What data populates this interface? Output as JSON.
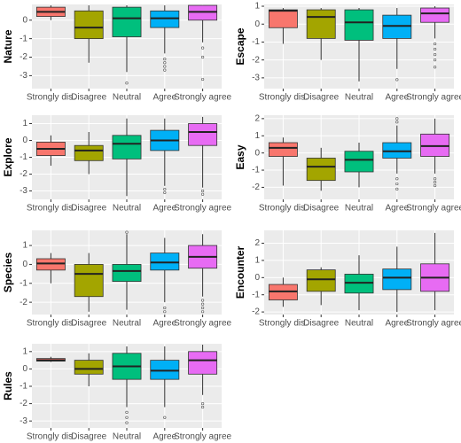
{
  "chart_data": [
    {
      "type": "box",
      "ylabel": "Nature",
      "categories": [
        "Strongly dis.",
        "Disagree",
        "Neutral",
        "Agree",
        "Strongly agree"
      ],
      "colors": [
        "#F8766D",
        "#A3A500",
        "#00BF7D",
        "#00B0F6",
        "#E76BF3"
      ],
      "grid": true,
      "ylim": [
        -3.7,
        0.85
      ],
      "yticks": [
        -3,
        -2,
        -1,
        0
      ],
      "boxes": [
        {
          "low": 0,
          "q1": 0.2,
          "median": 0.45,
          "q3": 0.7,
          "high": 0.8,
          "outliers": []
        },
        {
          "low": -2.3,
          "q1": -1.0,
          "median": -0.4,
          "q3": 0.5,
          "high": 0.8,
          "outliers": []
        },
        {
          "low": -2.8,
          "q1": -0.9,
          "median": 0.1,
          "q3": 0.7,
          "high": 0.8,
          "outliers": [
            -3.4
          ]
        },
        {
          "low": -1.8,
          "q1": -0.4,
          "median": 0.1,
          "q3": 0.5,
          "high": 0.8,
          "outliers": [
            -2.1,
            -2.3,
            -2.5,
            -2.7
          ]
        },
        {
          "low": -1.2,
          "q1": 0,
          "median": 0.45,
          "q3": 0.8,
          "high": 0.8,
          "outliers": [
            -1.5,
            -2.0,
            -3.2
          ]
        }
      ]
    },
    {
      "type": "box",
      "ylabel": "Escape",
      "categories": [
        "Strongly dis.",
        "Disagree",
        "Neutral",
        "Agree",
        "Strongly agree"
      ],
      "colors": [
        "#F8766D",
        "#A3A500",
        "#00BF7D",
        "#00B0F6",
        "#E76BF3"
      ],
      "grid": true,
      "ylim": [
        -3.6,
        1.1
      ],
      "yticks": [
        -3,
        -2,
        -1,
        0,
        1
      ],
      "boxes": [
        {
          "low": -1.1,
          "q1": -0.2,
          "median": 0.75,
          "q3": 0.8,
          "high": 0.9,
          "outliers": []
        },
        {
          "low": -2.0,
          "q1": -0.8,
          "median": 0.4,
          "q3": 0.8,
          "high": 0.9,
          "outliers": []
        },
        {
          "low": -3.2,
          "q1": -0.9,
          "median": 0.1,
          "q3": 0.8,
          "high": 0.9,
          "outliers": []
        },
        {
          "low": -2.5,
          "q1": -0.8,
          "median": -0.1,
          "q3": 0.5,
          "high": 0.9,
          "outliers": [
            -3.1
          ]
        },
        {
          "low": -0.8,
          "q1": 0.1,
          "median": 0.6,
          "q3": 0.9,
          "high": 1.0,
          "outliers": [
            -1.1,
            -1.4,
            -1.7,
            -2.0,
            -2.4
          ]
        }
      ]
    },
    {
      "type": "box",
      "ylabel": "Explore",
      "categories": [
        "Strongly dis.",
        "Disagree",
        "Neutral",
        "Agree",
        "Strongly agree"
      ],
      "colors": [
        "#F8766D",
        "#A3A500",
        "#00BF7D",
        "#00B0F6",
        "#E76BF3"
      ],
      "grid": true,
      "ylim": [
        -3.5,
        1.5
      ],
      "yticks": [
        -3,
        -2,
        -1,
        0,
        1
      ],
      "boxes": [
        {
          "low": -1.5,
          "q1": -0.9,
          "median": -0.5,
          "q3": -0.1,
          "high": 0.3,
          "outliers": []
        },
        {
          "low": -2.0,
          "q1": -1.2,
          "median": -0.6,
          "q3": -0.3,
          "high": 0.5,
          "outliers": []
        },
        {
          "low": -3.3,
          "q1": -1.1,
          "median": -0.2,
          "q3": 0.3,
          "high": 1.3,
          "outliers": []
        },
        {
          "low": -2.7,
          "q1": -0.6,
          "median": 0,
          "q3": 0.6,
          "high": 1.3,
          "outliers": [
            -2.9,
            -3.1
          ]
        },
        {
          "low": -2.8,
          "q1": -0.3,
          "median": 0.5,
          "q3": 1.0,
          "high": 1.4,
          "outliers": [
            -3.0,
            -3.2
          ]
        }
      ]
    },
    {
      "type": "box",
      "ylabel": "Easy",
      "categories": [
        "Strongly dis.",
        "Disagree",
        "Neutral",
        "Agree",
        "Strongly agree"
      ],
      "colors": [
        "#F8766D",
        "#A3A500",
        "#00BF7D",
        "#00B0F6",
        "#E76BF3"
      ],
      "grid": true,
      "ylim": [
        -2.7,
        2.2
      ],
      "yticks": [
        -2,
        -1,
        0,
        1,
        2
      ],
      "boxes": [
        {
          "low": -1.9,
          "q1": -0.2,
          "median": 0.3,
          "q3": 0.6,
          "high": 0.9,
          "outliers": []
        },
        {
          "low": -2.2,
          "q1": -1.6,
          "median": -0.8,
          "q3": -0.3,
          "high": 0.3,
          "outliers": []
        },
        {
          "low": -2.0,
          "q1": -1.1,
          "median": -0.4,
          "q3": 0.1,
          "high": 0.6,
          "outliers": []
        },
        {
          "low": -1.2,
          "q1": -0.3,
          "median": 0.1,
          "q3": 0.6,
          "high": 1.6,
          "outliers": [
            -1.5,
            -1.8,
            -2.1,
            1.8,
            2.0
          ]
        },
        {
          "low": -1.2,
          "q1": -0.2,
          "median": 0.4,
          "q3": 1.1,
          "high": 2.0,
          "outliers": [
            -1.5,
            -1.7,
            -1.9
          ]
        }
      ]
    },
    {
      "type": "box",
      "ylabel": "Species",
      "categories": [
        "Strongly dis.",
        "Disagree",
        "Neutral",
        "Agree",
        "Strongly agree"
      ],
      "colors": [
        "#F8766D",
        "#A3A500",
        "#00BF7D",
        "#00B0F6",
        "#E76BF3"
      ],
      "grid": true,
      "ylim": [
        -2.65,
        1.8
      ],
      "yticks": [
        -2,
        -1,
        0,
        1
      ],
      "boxes": [
        {
          "low": -1.0,
          "q1": -0.3,
          "median": 0.05,
          "q3": 0.3,
          "high": 0.6,
          "outliers": []
        },
        {
          "low": -2.5,
          "q1": -1.7,
          "median": -0.5,
          "q3": 0,
          "high": 0.6,
          "outliers": []
        },
        {
          "low": -2.4,
          "q1": -0.9,
          "median": -0.35,
          "q3": 0,
          "high": 1.6,
          "outliers": [
            1.7
          ]
        },
        {
          "low": -2.0,
          "q1": -0.3,
          "median": 0.1,
          "q3": 0.6,
          "high": 1.4,
          "outliers": [
            -2.3,
            -2.5
          ]
        },
        {
          "low": -1.7,
          "q1": -0.2,
          "median": 0.4,
          "q3": 1.0,
          "high": 1.6,
          "outliers": [
            -1.9,
            -2.1,
            -2.3,
            -2.5
          ]
        }
      ]
    },
    {
      "type": "box",
      "ylabel": "Encounter",
      "categories": [
        "Strongly dis.",
        "Disagree",
        "Neutral",
        "Agree",
        "Strongly agree"
      ],
      "colors": [
        "#F8766D",
        "#A3A500",
        "#00BF7D",
        "#00B0F6",
        "#E76BF3"
      ],
      "grid": true,
      "ylim": [
        -2.15,
        2.75
      ],
      "yticks": [
        -2,
        -1,
        0,
        1,
        2
      ],
      "boxes": [
        {
          "low": -1.7,
          "q1": -1.3,
          "median": -0.8,
          "q3": -0.4,
          "high": 0,
          "outliers": []
        },
        {
          "low": -1.6,
          "q1": -0.8,
          "median": -0.1,
          "q3": 0.45,
          "high": 0.6,
          "outliers": []
        },
        {
          "low": -1.9,
          "q1": -0.9,
          "median": -0.3,
          "q3": 0.2,
          "high": 1.3,
          "outliers": []
        },
        {
          "low": -2.0,
          "q1": -0.7,
          "median": 0,
          "q3": 0.5,
          "high": 1.8,
          "outliers": []
        },
        {
          "low": -1.9,
          "q1": -0.8,
          "median": 0,
          "q3": 0.8,
          "high": 2.6,
          "outliers": []
        }
      ]
    },
    {
      "type": "box",
      "ylabel": "Rules",
      "categories": [
        "Strongly dis.",
        "Disagree",
        "Neutral",
        "Agree",
        "Strongly agree"
      ],
      "colors": [
        "#F8766D",
        "#A3A500",
        "#00BF7D",
        "#00B0F6",
        "#E76BF3"
      ],
      "grid": true,
      "ylim": [
        -3.4,
        1.45
      ],
      "yticks": [
        -3,
        -2,
        -1,
        0,
        1
      ],
      "boxes": [
        {
          "low": 0.4,
          "q1": 0.45,
          "median": 0.5,
          "q3": 0.6,
          "high": 0.7,
          "outliers": []
        },
        {
          "low": -1.0,
          "q1": -0.3,
          "median": 0,
          "q3": 0.5,
          "high": 0.9,
          "outliers": []
        },
        {
          "low": -2.2,
          "q1": -0.6,
          "median": 0.15,
          "q3": 0.9,
          "high": 1.3,
          "outliers": [
            -2.5,
            -2.8,
            -3.1
          ]
        },
        {
          "low": -2.2,
          "q1": -0.6,
          "median": -0.1,
          "q3": 0.5,
          "high": 1.3,
          "outliers": [
            -2.8
          ]
        },
        {
          "low": -1.5,
          "q1": -0.3,
          "median": 0.5,
          "q3": 1.0,
          "high": 1.4,
          "outliers": [
            -2.0,
            -2.2
          ]
        }
      ]
    }
  ]
}
